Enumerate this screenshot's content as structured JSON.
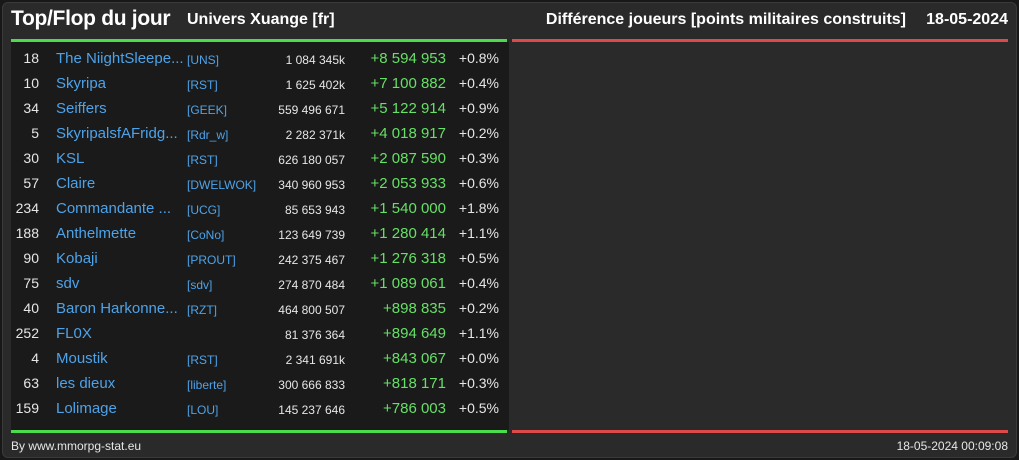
{
  "header": {
    "title": "Top/Flop du jour",
    "universe": "Univers Xuange [fr]",
    "metric": "Différence joueurs [points militaires construits]",
    "date": "18-05-2024"
  },
  "colors": {
    "top_bar": "#4cdb4c",
    "flop_bar": "#dd4a4a",
    "link": "#4da3ea",
    "positive": "#66e066"
  },
  "rows": [
    {
      "rank": "18",
      "name": "The NiightSleepe...",
      "ally": "[UNS]",
      "total": "1 084 345k",
      "diff": "+8 594 953",
      "pct": "+0.8%"
    },
    {
      "rank": "10",
      "name": "Skyripa",
      "ally": "[RST]",
      "total": "1 625 402k",
      "diff": "+7 100 882",
      "pct": "+0.4%"
    },
    {
      "rank": "34",
      "name": "Seiffers",
      "ally": "[GEEK]",
      "total": "559 496 671",
      "diff": "+5 122 914",
      "pct": "+0.9%"
    },
    {
      "rank": "5",
      "name": "SkyripalsfAFridg...",
      "ally": "[Rdr_w]",
      "total": "2 282 371k",
      "diff": "+4 018 917",
      "pct": "+0.2%"
    },
    {
      "rank": "30",
      "name": "KSL",
      "ally": "[RST]",
      "total": "626 180 057",
      "diff": "+2 087 590",
      "pct": "+0.3%"
    },
    {
      "rank": "57",
      "name": "Claire",
      "ally": "[DWELWOK]",
      "total": "340 960 953",
      "diff": "+2 053 933",
      "pct": "+0.6%"
    },
    {
      "rank": "234",
      "name": "Commandante ...",
      "ally": "[UCG]",
      "total": "85 653 943",
      "diff": "+1 540 000",
      "pct": "+1.8%"
    },
    {
      "rank": "188",
      "name": "Anthelmette",
      "ally": "[CoNo]",
      "total": "123 649 739",
      "diff": "+1 280 414",
      "pct": "+1.1%"
    },
    {
      "rank": "90",
      "name": "Kobaji",
      "ally": "[PROUT]",
      "total": "242 375 467",
      "diff": "+1 276 318",
      "pct": "+0.5%"
    },
    {
      "rank": "75",
      "name": "sdv",
      "ally": "[sdv]",
      "total": "274 870 484",
      "diff": "+1 089 061",
      "pct": "+0.4%"
    },
    {
      "rank": "40",
      "name": "Baron Harkonne...",
      "ally": "[RZT]",
      "total": "464 800 507",
      "diff": "+898 835",
      "pct": "+0.2%"
    },
    {
      "rank": "252",
      "name": "FL0X",
      "ally": "",
      "total": "81 376 364",
      "diff": "+894 649",
      "pct": "+1.1%"
    },
    {
      "rank": "4",
      "name": "Moustik",
      "ally": "[RST]",
      "total": "2 341 691k",
      "diff": "+843 067",
      "pct": "+0.0%"
    },
    {
      "rank": "63",
      "name": "les dieux",
      "ally": "[liberte]",
      "total": "300 666 833",
      "diff": "+818 171",
      "pct": "+0.3%"
    },
    {
      "rank": "159",
      "name": "Lolimage",
      "ally": "[LOU]",
      "total": "145 237 646",
      "diff": "+786 003",
      "pct": "+0.5%"
    }
  ],
  "footer": {
    "credit": "By www.mmorpg-stat.eu",
    "timestamp": "18-05-2024 00:09:08"
  }
}
